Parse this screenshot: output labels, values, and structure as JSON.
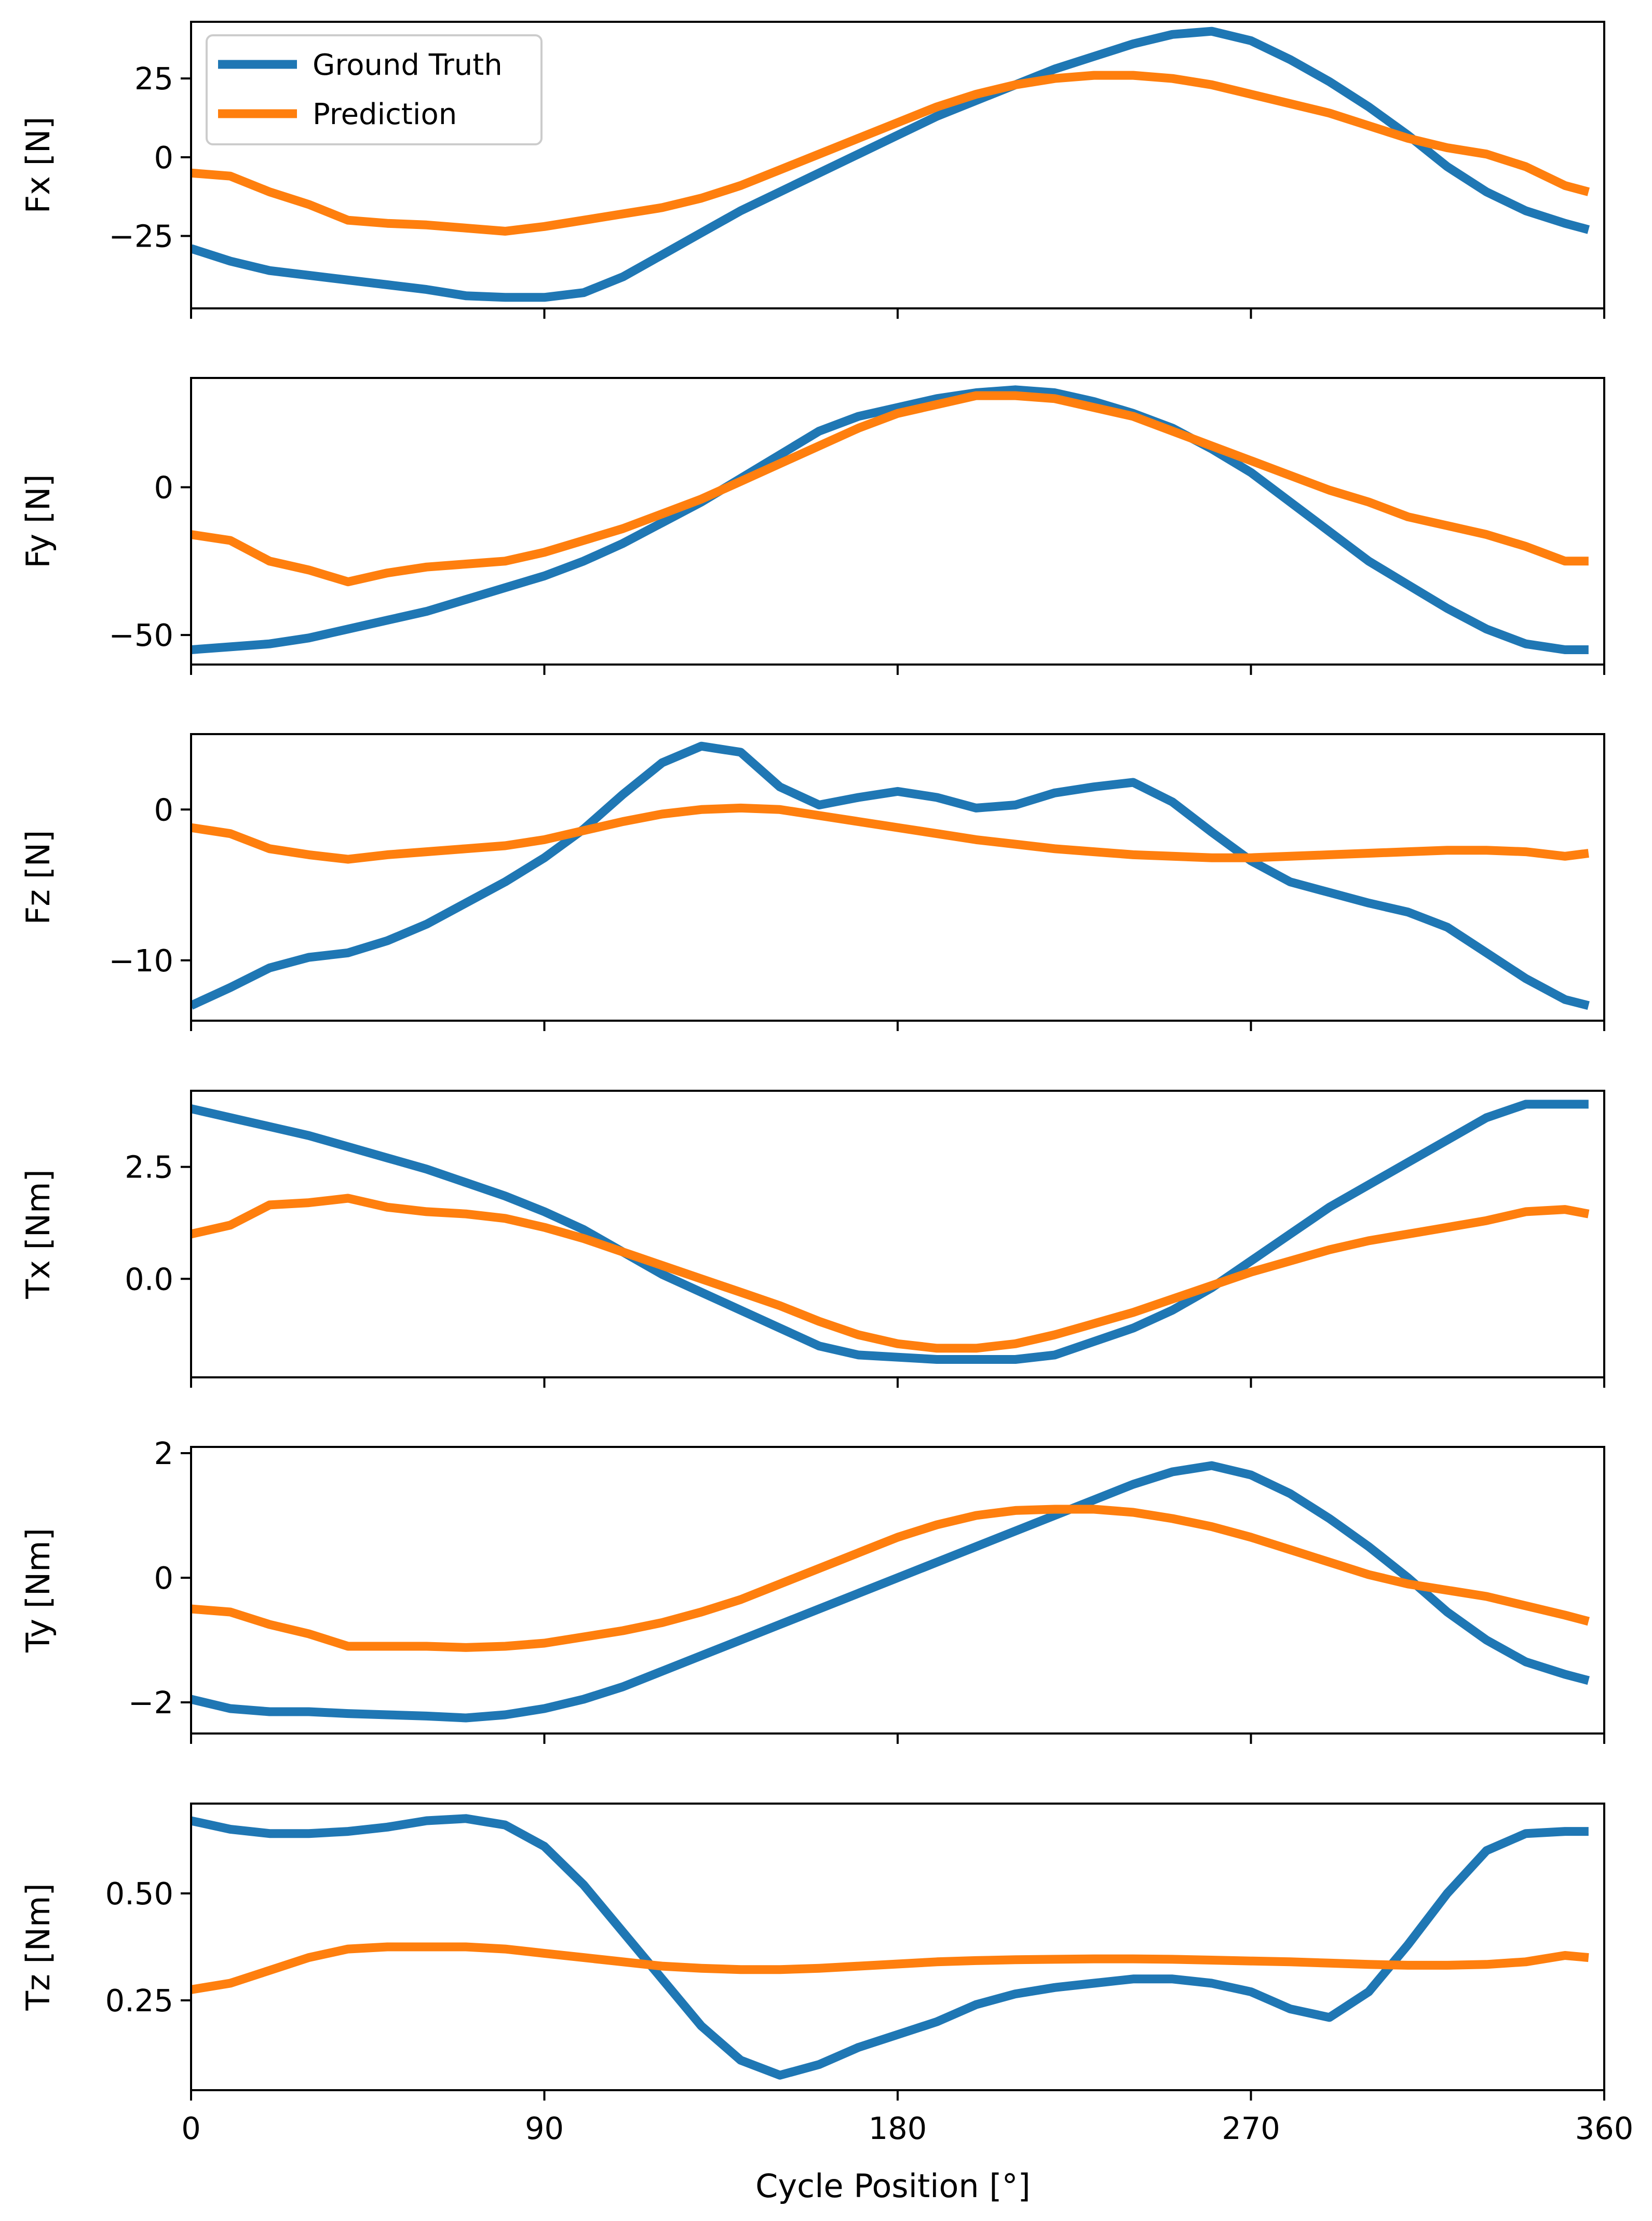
{
  "figure": {
    "xlabel": "Cycle Position [°]",
    "xticks": [
      0,
      90,
      180,
      270,
      360
    ],
    "xlim": [
      0,
      360
    ],
    "legend": {
      "placement": "upper-left of first panel",
      "entries": [
        {
          "key": "gt",
          "label": "Ground Truth",
          "color": "#1f77b4"
        },
        {
          "key": "pred",
          "label": "Prediction",
          "color": "#ff7f0e"
        }
      ]
    }
  },
  "chart_data": [
    {
      "type": "line",
      "ylabel": "Fx [N]",
      "ylim": [
        -48,
        43
      ],
      "yticks": [
        25,
        0,
        -25
      ],
      "ytick_labels": [
        "25",
        "0",
        "−25"
      ],
      "x": [
        0,
        10,
        20,
        30,
        40,
        50,
        60,
        70,
        80,
        90,
        100,
        110,
        120,
        130,
        140,
        150,
        160,
        170,
        180,
        190,
        200,
        210,
        220,
        230,
        240,
        250,
        260,
        270,
        280,
        290,
        300,
        310,
        320,
        330,
        340,
        350,
        356
      ],
      "series": [
        {
          "name": "Ground Truth",
          "values": [
            -29,
            -33,
            -36,
            -37.5,
            -39,
            -40.5,
            -42,
            -44,
            -44.5,
            -44.5,
            -43,
            -38,
            -31,
            -24,
            -17,
            -11,
            -5,
            1,
            7,
            13,
            18,
            23,
            28,
            32,
            36,
            39,
            40,
            37,
            31,
            24,
            16,
            7,
            -3,
            -11,
            -17,
            -21,
            -23
          ]
        },
        {
          "name": "Prediction",
          "values": [
            -5,
            -6,
            -11,
            -15,
            -20,
            -21,
            -21.5,
            -22.5,
            -23.5,
            -22,
            -20,
            -18,
            -16,
            -13,
            -9,
            -4,
            1,
            6,
            11,
            16,
            20,
            23,
            25,
            26,
            26,
            25,
            23,
            20,
            17,
            14,
            10,
            6,
            3,
            1,
            -3,
            -9,
            -11
          ]
        }
      ]
    },
    {
      "type": "line",
      "ylabel": "Fy [N]",
      "ylim": [
        -60,
        37
      ],
      "yticks": [
        0,
        -50
      ],
      "ytick_labels": [
        "0",
        "−50"
      ],
      "x": [
        0,
        10,
        20,
        30,
        40,
        50,
        60,
        70,
        80,
        90,
        100,
        110,
        120,
        130,
        140,
        150,
        160,
        170,
        180,
        190,
        200,
        210,
        220,
        230,
        240,
        250,
        260,
        270,
        280,
        290,
        300,
        310,
        320,
        330,
        340,
        350,
        356
      ],
      "series": [
        {
          "name": "Ground Truth",
          "values": [
            -55,
            -54,
            -53,
            -51,
            -48,
            -45,
            -42,
            -38,
            -34,
            -30,
            -25,
            -19,
            -12,
            -5,
            3,
            11,
            19,
            24,
            27,
            30,
            32,
            33,
            32,
            29,
            25,
            20,
            13,
            5,
            -5,
            -15,
            -25,
            -33,
            -41,
            -48,
            -53,
            -55,
            -55
          ]
        },
        {
          "name": "Prediction",
          "values": [
            -16,
            -18,
            -25,
            -28,
            -32,
            -29,
            -27,
            -26,
            -25,
            -22,
            -18,
            -14,
            -9,
            -4,
            2,
            8,
            14,
            20,
            25,
            28,
            31,
            31,
            30,
            27,
            24,
            19,
            14,
            9,
            4,
            -1,
            -5,
            -10,
            -13,
            -16,
            -20,
            -25,
            -25
          ]
        }
      ]
    },
    {
      "type": "line",
      "ylabel": "Fz [N]",
      "ylim": [
        -14,
        5
      ],
      "yticks": [
        0,
        -10
      ],
      "ytick_labels": [
        "0",
        "−10"
      ],
      "x": [
        0,
        10,
        20,
        30,
        40,
        50,
        60,
        70,
        80,
        90,
        100,
        110,
        120,
        130,
        140,
        150,
        160,
        170,
        180,
        190,
        200,
        210,
        220,
        230,
        240,
        250,
        260,
        270,
        280,
        290,
        300,
        310,
        320,
        330,
        340,
        350,
        356
      ],
      "series": [
        {
          "name": "Ground Truth",
          "values": [
            -13,
            -11.8,
            -10.5,
            -9.8,
            -9.5,
            -8.7,
            -7.6,
            -6.2,
            -4.8,
            -3.2,
            -1.3,
            1,
            3.1,
            4.2,
            3.8,
            1.5,
            0.3,
            0.8,
            1.2,
            0.8,
            0.1,
            0.3,
            1.1,
            1.5,
            1.8,
            0.5,
            -1.5,
            -3.4,
            -4.8,
            -5.5,
            -6.2,
            -6.8,
            -7.8,
            -9.5,
            -11.2,
            -12.6,
            -13
          ]
        },
        {
          "name": "Prediction",
          "values": [
            -1.2,
            -1.6,
            -2.6,
            -3,
            -3.3,
            -3,
            -2.8,
            -2.6,
            -2.4,
            -2,
            -1.4,
            -0.8,
            -0.3,
            0,
            0.1,
            0,
            -0.4,
            -0.8,
            -1.2,
            -1.6,
            -2,
            -2.3,
            -2.6,
            -2.8,
            -3,
            -3.1,
            -3.2,
            -3.2,
            -3.1,
            -3,
            -2.9,
            -2.8,
            -2.7,
            -2.7,
            -2.8,
            -3.1,
            -2.9
          ]
        }
      ]
    },
    {
      "type": "line",
      "ylabel": "Tx [Nm]",
      "ylim": [
        -2.2,
        4.2
      ],
      "yticks": [
        2.5,
        0.0
      ],
      "ytick_labels": [
        "2.5",
        "0.0"
      ],
      "x": [
        0,
        10,
        20,
        30,
        40,
        50,
        60,
        70,
        80,
        90,
        100,
        110,
        120,
        130,
        140,
        150,
        160,
        170,
        180,
        190,
        200,
        210,
        220,
        230,
        240,
        250,
        260,
        270,
        280,
        290,
        300,
        310,
        320,
        330,
        340,
        350,
        356
      ],
      "series": [
        {
          "name": "Ground Truth",
          "values": [
            3.8,
            3.6,
            3.4,
            3.2,
            2.95,
            2.7,
            2.45,
            2.15,
            1.85,
            1.5,
            1.1,
            0.6,
            0.1,
            -0.3,
            -0.7,
            -1.1,
            -1.5,
            -1.7,
            -1.75,
            -1.8,
            -1.8,
            -1.8,
            -1.7,
            -1.4,
            -1.1,
            -0.7,
            -0.2,
            0.4,
            1.0,
            1.6,
            2.1,
            2.6,
            3.1,
            3.6,
            3.9,
            3.9,
            3.9
          ]
        },
        {
          "name": "Prediction",
          "values": [
            1.0,
            1.2,
            1.65,
            1.7,
            1.8,
            1.6,
            1.5,
            1.45,
            1.35,
            1.15,
            0.9,
            0.6,
            0.3,
            0.0,
            -0.3,
            -0.6,
            -0.95,
            -1.25,
            -1.45,
            -1.55,
            -1.55,
            -1.45,
            -1.25,
            -1.0,
            -0.75,
            -0.45,
            -0.15,
            0.15,
            0.4,
            0.65,
            0.85,
            1.0,
            1.15,
            1.3,
            1.5,
            1.55,
            1.45
          ]
        }
      ]
    },
    {
      "type": "line",
      "ylabel": "Ty [Nm]",
      "ylim": [
        -2.5,
        2.1
      ],
      "yticks": [
        2,
        0,
        -2
      ],
      "ytick_labels": [
        "2",
        "0",
        "−2"
      ],
      "x": [
        0,
        10,
        20,
        30,
        40,
        50,
        60,
        70,
        80,
        90,
        100,
        110,
        120,
        130,
        140,
        150,
        160,
        170,
        180,
        190,
        200,
        210,
        220,
        230,
        240,
        250,
        260,
        270,
        280,
        290,
        300,
        310,
        320,
        330,
        340,
        350,
        356
      ],
      "series": [
        {
          "name": "Ground Truth",
          "values": [
            -1.95,
            -2.1,
            -2.15,
            -2.15,
            -2.18,
            -2.2,
            -2.22,
            -2.25,
            -2.2,
            -2.1,
            -1.95,
            -1.75,
            -1.5,
            -1.25,
            -1.0,
            -0.75,
            -0.5,
            -0.25,
            0.0,
            0.25,
            0.5,
            0.75,
            1.0,
            1.25,
            1.5,
            1.7,
            1.8,
            1.65,
            1.35,
            0.95,
            0.5,
            0.0,
            -0.55,
            -1.0,
            -1.35,
            -1.55,
            -1.65
          ]
        },
        {
          "name": "Prediction",
          "values": [
            -0.5,
            -0.55,
            -0.75,
            -0.9,
            -1.1,
            -1.1,
            -1.1,
            -1.12,
            -1.1,
            -1.05,
            -0.95,
            -0.85,
            -0.72,
            -0.55,
            -0.35,
            -0.1,
            0.15,
            0.4,
            0.65,
            0.85,
            1.0,
            1.08,
            1.1,
            1.1,
            1.05,
            0.95,
            0.82,
            0.65,
            0.45,
            0.25,
            0.05,
            -0.1,
            -0.2,
            -0.3,
            -0.45,
            -0.6,
            -0.7
          ]
        }
      ]
    },
    {
      "type": "line",
      "ylabel": "Tz [Nm]",
      "ylim": [
        0.04,
        0.71
      ],
      "yticks": [
        0.5,
        0.25
      ],
      "ytick_labels": [
        "0.50",
        "0.25"
      ],
      "x": [
        0,
        10,
        20,
        30,
        40,
        50,
        60,
        70,
        80,
        90,
        100,
        110,
        120,
        130,
        140,
        150,
        160,
        170,
        180,
        190,
        200,
        210,
        220,
        230,
        240,
        250,
        260,
        270,
        280,
        290,
        300,
        310,
        320,
        330,
        340,
        350,
        356
      ],
      "series": [
        {
          "name": "Ground Truth",
          "values": [
            0.67,
            0.65,
            0.64,
            0.64,
            0.645,
            0.655,
            0.67,
            0.675,
            0.66,
            0.61,
            0.52,
            0.41,
            0.3,
            0.19,
            0.11,
            0.075,
            0.1,
            0.14,
            0.17,
            0.2,
            0.24,
            0.265,
            0.28,
            0.29,
            0.3,
            0.3,
            0.29,
            0.27,
            0.23,
            0.21,
            0.27,
            0.38,
            0.5,
            0.6,
            0.64,
            0.645,
            0.645
          ]
        },
        {
          "name": "Prediction",
          "values": [
            0.275,
            0.29,
            0.32,
            0.35,
            0.37,
            0.375,
            0.375,
            0.375,
            0.37,
            0.36,
            0.35,
            0.34,
            0.33,
            0.325,
            0.322,
            0.322,
            0.325,
            0.33,
            0.335,
            0.34,
            0.343,
            0.345,
            0.346,
            0.347,
            0.347,
            0.346,
            0.344,
            0.342,
            0.34,
            0.337,
            0.334,
            0.332,
            0.332,
            0.334,
            0.34,
            0.355,
            0.35
          ]
        }
      ]
    }
  ]
}
